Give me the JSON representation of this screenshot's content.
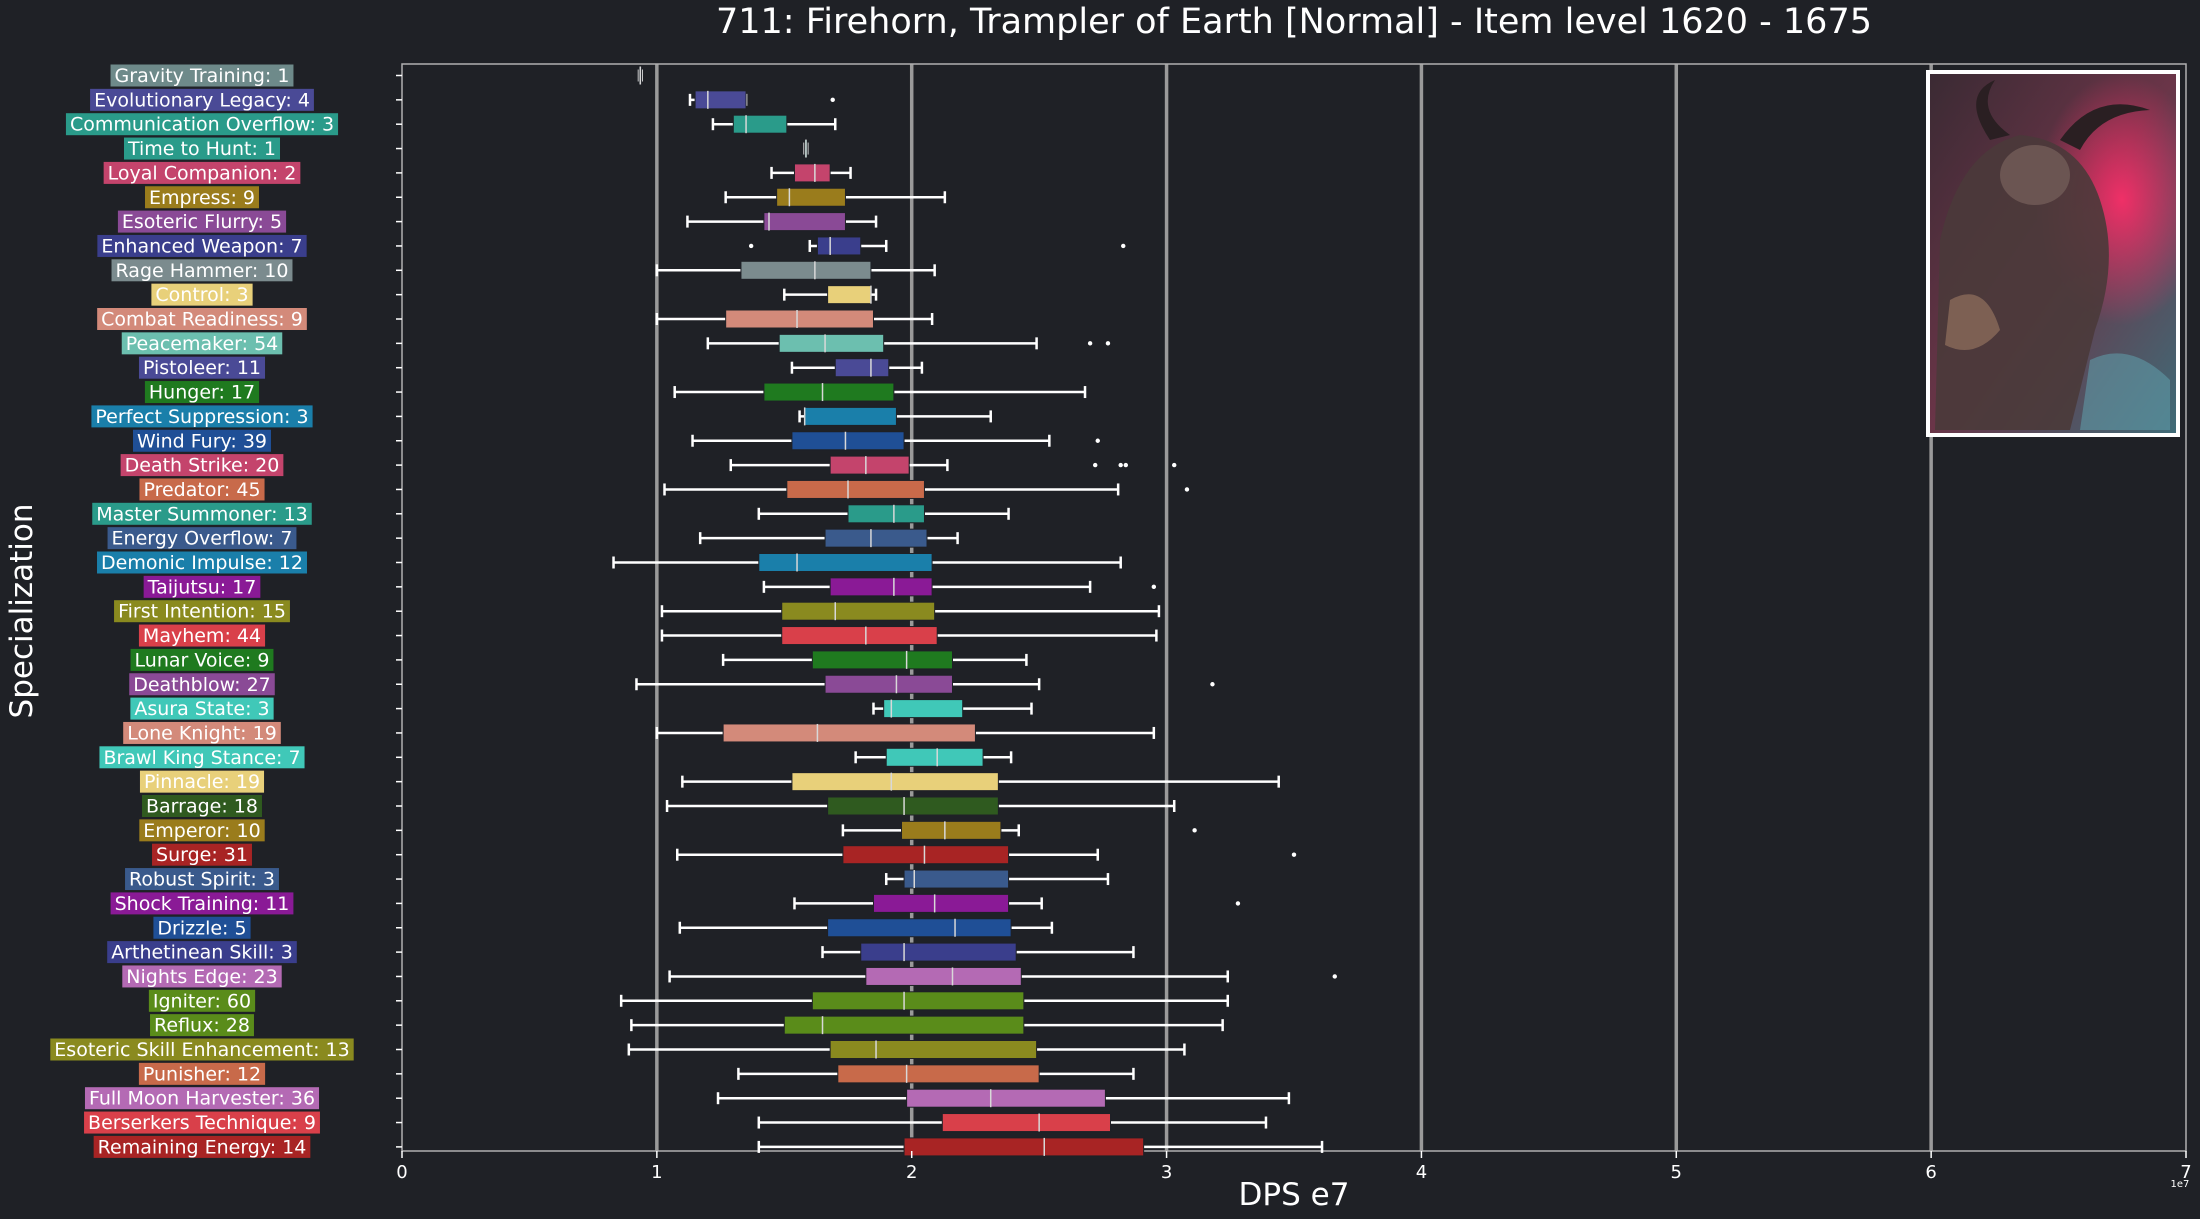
{
  "chart_data": {
    "type": "boxplot",
    "title": "711: Firehorn, Trampler of Earth [Normal] - Item level 1620 - 1675",
    "xlabel": "DPS e7",
    "ylabel": "Specialization",
    "xlim": [
      0,
      7
    ],
    "xticks": [
      "0",
      "1",
      "2",
      "3",
      "4",
      "5",
      "6",
      "7"
    ],
    "x_scale_note": "1e7",
    "orientation": "horizontal",
    "grid": "vertical major gridlines",
    "inset_image": "boss portrait, top-right",
    "categories": [
      {
        "label": "Gravity Training: 1",
        "color": "#6e8a8a",
        "whisker": [
          0.93,
          0.94
        ],
        "box": [
          0.93,
          0.94
        ],
        "median": 0.935,
        "outliers": []
      },
      {
        "label": "Evolutionary Legacy: 4",
        "color": "#4a4a96",
        "whisker": [
          1.13,
          1.35
        ],
        "box": [
          1.15,
          1.35
        ],
        "median": 1.2,
        "outliers": [
          1.69
        ]
      },
      {
        "label": "Communication Overflow: 3",
        "color": "#2a9b8a",
        "whisker": [
          1.22,
          1.7
        ],
        "box": [
          1.3,
          1.51
        ],
        "median": 1.35,
        "outliers": []
      },
      {
        "label": "Time to Hunt: 1",
        "color": "#2a9b8a",
        "whisker": [
          1.58,
          1.59
        ],
        "box": [
          1.58,
          1.59
        ],
        "median": 1.585,
        "outliers": []
      },
      {
        "label": "Loyal Companion: 2",
        "color": "#c4446c",
        "whisker": [
          1.45,
          1.76
        ],
        "box": [
          1.54,
          1.68
        ],
        "median": 1.62,
        "outliers": []
      },
      {
        "label": "Empress: 9",
        "color": "#9a7c1c",
        "whisker": [
          1.27,
          2.13
        ],
        "box": [
          1.47,
          1.74
        ],
        "median": 1.52,
        "outliers": []
      },
      {
        "label": "Esoteric Flurry: 5",
        "color": "#8a4a96",
        "whisker": [
          1.12,
          1.86
        ],
        "box": [
          1.42,
          1.74
        ],
        "median": 1.44,
        "outliers": []
      },
      {
        "label": "Enhanced Weapon: 7",
        "color": "#3a3e8c",
        "whisker": [
          1.6,
          1.9
        ],
        "box": [
          1.63,
          1.8
        ],
        "median": 1.68,
        "outliers": [
          1.37,
          2.83
        ]
      },
      {
        "label": "Rage Hammer: 10",
        "color": "#7b8b8e",
        "whisker": [
          1.0,
          2.09
        ],
        "box": [
          1.33,
          1.84
        ],
        "median": 1.62,
        "outliers": []
      },
      {
        "label": "Control: 3",
        "color": "#e8d07a",
        "whisker": [
          1.5,
          1.86
        ],
        "box": [
          1.67,
          1.84
        ],
        "median": 1.84,
        "outliers": []
      },
      {
        "label": "Combat Readiness: 9",
        "color": "#d38a7a",
        "whisker": [
          1.0,
          2.08
        ],
        "box": [
          1.27,
          1.85
        ],
        "median": 1.55,
        "outliers": []
      },
      {
        "label": "Peacemaker: 54",
        "color": "#6cbfaf",
        "whisker": [
          1.2,
          2.49
        ],
        "box": [
          1.48,
          1.89
        ],
        "median": 1.66,
        "outliers": [
          2.7,
          2.77
        ]
      },
      {
        "label": "Pistoleer: 11",
        "color": "#4a4a96",
        "whisker": [
          1.53,
          2.04
        ],
        "box": [
          1.7,
          1.91
        ],
        "median": 1.84,
        "outliers": []
      },
      {
        "label": "Hunger: 17",
        "color": "#1f7a1f",
        "whisker": [
          1.07,
          2.68
        ],
        "box": [
          1.42,
          1.93
        ],
        "median": 1.65,
        "outliers": []
      },
      {
        "label": "Perfect Suppression: 3",
        "color": "#1a7faa",
        "whisker": [
          1.56,
          2.31
        ],
        "box": [
          1.58,
          1.94
        ],
        "median": 1.58,
        "outliers": []
      },
      {
        "label": "Wind Fury: 39",
        "color": "#1f4f96",
        "whisker": [
          1.14,
          2.54
        ],
        "box": [
          1.53,
          1.97
        ],
        "median": 1.74,
        "outliers": [
          2.73
        ]
      },
      {
        "label": "Death Strike: 20",
        "color": "#c4446c",
        "whisker": [
          1.29,
          2.14
        ],
        "box": [
          1.68,
          1.99
        ],
        "median": 1.82,
        "outliers": [
          2.72,
          2.82,
          2.84,
          3.03
        ]
      },
      {
        "label": "Predator: 45",
        "color": "#c86a4a",
        "whisker": [
          1.03,
          2.81
        ],
        "box": [
          1.51,
          2.05
        ],
        "median": 1.75,
        "outliers": [
          3.08
        ]
      },
      {
        "label": "Master Summoner: 13",
        "color": "#2a9b8a",
        "whisker": [
          1.4,
          2.38
        ],
        "box": [
          1.75,
          2.05
        ],
        "median": 1.93,
        "outliers": []
      },
      {
        "label": "Energy Overflow: 7",
        "color": "#3a5a8c",
        "whisker": [
          1.17,
          2.18
        ],
        "box": [
          1.66,
          2.06
        ],
        "median": 1.84,
        "outliers": []
      },
      {
        "label": "Demonic Impulse: 12",
        "color": "#1a7faa",
        "whisker": [
          0.83,
          2.82
        ],
        "box": [
          1.4,
          2.08
        ],
        "median": 1.55,
        "outliers": []
      },
      {
        "label": "Taijutsu: 17",
        "color": "#8a1a96",
        "whisker": [
          1.42,
          2.7
        ],
        "box": [
          1.68,
          2.08
        ],
        "median": 1.93,
        "outliers": [
          2.95
        ]
      },
      {
        "label": "First Intention: 15",
        "color": "#8a8a1f",
        "whisker": [
          1.02,
          2.97
        ],
        "box": [
          1.49,
          2.09
        ],
        "median": 1.7,
        "outliers": []
      },
      {
        "label": "Mayhem: 44",
        "color": "#d9404a",
        "whisker": [
          1.02,
          2.96
        ],
        "box": [
          1.49,
          2.1
        ],
        "median": 1.82,
        "outliers": []
      },
      {
        "label": "Lunar Voice: 9",
        "color": "#1f7a1f",
        "whisker": [
          1.26,
          2.45
        ],
        "box": [
          1.61,
          2.16
        ],
        "median": 1.98,
        "outliers": []
      },
      {
        "label": "Deathblow: 27",
        "color": "#8a4a96",
        "whisker": [
          0.92,
          2.5
        ],
        "box": [
          1.66,
          2.16
        ],
        "median": 1.94,
        "outliers": [
          3.18
        ]
      },
      {
        "label": "Asura State: 3",
        "color": "#40c8b8",
        "whisker": [
          1.85,
          2.47
        ],
        "box": [
          1.89,
          2.2
        ],
        "median": 1.92,
        "outliers": []
      },
      {
        "label": "Lone Knight: 19",
        "color": "#d38a7a",
        "whisker": [
          1.0,
          2.95
        ],
        "box": [
          1.26,
          2.25
        ],
        "median": 1.63,
        "outliers": []
      },
      {
        "label": "Brawl King Stance: 7",
        "color": "#40c8b8",
        "whisker": [
          1.78,
          2.39
        ],
        "box": [
          1.9,
          2.28
        ],
        "median": 2.1,
        "outliers": []
      },
      {
        "label": "Pinnacle: 19",
        "color": "#e8d07a",
        "whisker": [
          1.1,
          3.44
        ],
        "box": [
          1.53,
          2.34
        ],
        "median": 1.92,
        "outliers": []
      },
      {
        "label": "Barrage: 18",
        "color": "#2f5a1f",
        "whisker": [
          1.04,
          3.03
        ],
        "box": [
          1.67,
          2.34
        ],
        "median": 1.97,
        "outliers": []
      },
      {
        "label": "Emperor: 10",
        "color": "#9a7c1c",
        "whisker": [
          1.73,
          2.42
        ],
        "box": [
          1.96,
          2.35
        ],
        "median": 2.13,
        "outliers": [
          3.11
        ]
      },
      {
        "label": "Surge: 31",
        "color": "#a82424",
        "whisker": [
          1.08,
          2.73
        ],
        "box": [
          1.73,
          2.38
        ],
        "median": 2.05,
        "outliers": [
          3.5
        ]
      },
      {
        "label": "Robust Spirit: 3",
        "color": "#3a5a8c",
        "whisker": [
          1.9,
          2.77
        ],
        "box": [
          1.97,
          2.38
        ],
        "median": 2.01,
        "outliers": []
      },
      {
        "label": "Shock Training: 11",
        "color": "#8a1a96",
        "whisker": [
          1.54,
          2.51
        ],
        "box": [
          1.85,
          2.38
        ],
        "median": 2.09,
        "outliers": [
          3.28
        ]
      },
      {
        "label": "Drizzle: 5",
        "color": "#1f4f96",
        "whisker": [
          1.09,
          2.55
        ],
        "box": [
          1.67,
          2.39
        ],
        "median": 2.17,
        "outliers": []
      },
      {
        "label": "Arthetinean Skill: 3",
        "color": "#3a3e8c",
        "whisker": [
          1.65,
          2.87
        ],
        "box": [
          1.8,
          2.41
        ],
        "median": 1.97,
        "outliers": []
      },
      {
        "label": "Nights Edge: 23",
        "color": "#b46ab4",
        "whisker": [
          1.05,
          3.24
        ],
        "box": [
          1.82,
          2.43
        ],
        "median": 2.16,
        "outliers": [
          3.66
        ]
      },
      {
        "label": "Igniter: 60",
        "color": "#5a8c1a",
        "whisker": [
          0.86,
          3.24
        ],
        "box": [
          1.61,
          2.44
        ],
        "median": 1.97,
        "outliers": []
      },
      {
        "label": "Reflux: 28",
        "color": "#5a8c1a",
        "whisker": [
          0.9,
          3.22
        ],
        "box": [
          1.5,
          2.44
        ],
        "median": 1.65,
        "outliers": []
      },
      {
        "label": "Esoteric Skill Enhancement: 13",
        "color": "#8a8a1f",
        "whisker": [
          0.89,
          3.07
        ],
        "box": [
          1.68,
          2.49
        ],
        "median": 1.86,
        "outliers": []
      },
      {
        "label": "Punisher: 12",
        "color": "#c86a4a",
        "whisker": [
          1.32,
          2.87
        ],
        "box": [
          1.71,
          2.5
        ],
        "median": 1.98,
        "outliers": []
      },
      {
        "label": "Full Moon Harvester: 36",
        "color": "#b46ab4",
        "whisker": [
          1.24,
          3.48
        ],
        "box": [
          1.98,
          2.76
        ],
        "median": 2.31,
        "outliers": []
      },
      {
        "label": "Berserkers Technique: 9",
        "color": "#d9404a",
        "whisker": [
          1.4,
          3.39
        ],
        "box": [
          2.12,
          2.78
        ],
        "median": 2.5,
        "outliers": []
      },
      {
        "label": "Remaining Energy: 14",
        "color": "#a82424",
        "whisker": [
          1.4,
          3.61
        ],
        "box": [
          1.97,
          2.91
        ],
        "median": 2.52,
        "outliers": []
      }
    ]
  }
}
